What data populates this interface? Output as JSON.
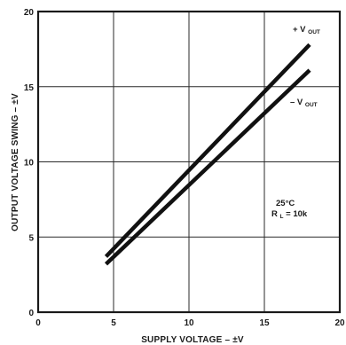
{
  "chart_data": {
    "type": "line",
    "title": "",
    "xlabel": "SUPPLY VOLTAGE – ±V",
    "ylabel": "OUTPUT VOLTAGE SWING – ±V",
    "xlim": [
      0,
      20
    ],
    "ylim": [
      0,
      20
    ],
    "x_ticks": [
      "0",
      "5",
      "10",
      "15",
      "20"
    ],
    "y_ticks": [
      "0",
      "5",
      "10",
      "15",
      "20"
    ],
    "grid": true,
    "series": [
      {
        "name": "+ V",
        "name_subscript": "OUT",
        "x": [
          4.5,
          18
        ],
        "y": [
          3.7,
          17.8
        ]
      },
      {
        "name": "– V",
        "name_subscript": "OUT",
        "x": [
          4.5,
          18
        ],
        "y": [
          3.2,
          16.1
        ]
      }
    ],
    "annotations": [
      "25°C",
      "R",
      "L",
      " = 10k"
    ]
  }
}
